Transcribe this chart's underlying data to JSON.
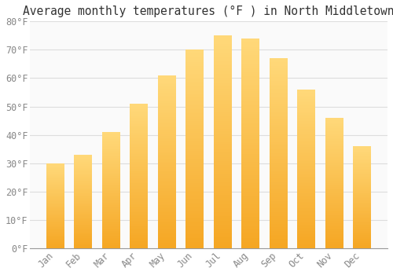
{
  "title": "Average monthly temperatures (°F ) in North Middletown",
  "months": [
    "Jan",
    "Feb",
    "Mar",
    "Apr",
    "May",
    "Jun",
    "Jul",
    "Aug",
    "Sep",
    "Oct",
    "Nov",
    "Dec"
  ],
  "values": [
    30,
    33,
    41,
    51,
    61,
    70,
    75,
    74,
    67,
    56,
    46,
    36
  ],
  "bar_color_bottom": "#F5A623",
  "bar_color_top": "#FFD97A",
  "background_color": "#FFFFFF",
  "plot_bg_color": "#FAFAFA",
  "grid_color": "#DDDDDD",
  "tick_color": "#888888",
  "title_color": "#333333",
  "ylim": [
    0,
    80
  ],
  "yticks": [
    0,
    10,
    20,
    30,
    40,
    50,
    60,
    70,
    80
  ],
  "ytick_labels": [
    "0°F",
    "10°F",
    "20°F",
    "30°F",
    "40°F",
    "50°F",
    "60°F",
    "70°F",
    "80°F"
  ],
  "title_fontsize": 10.5,
  "tick_fontsize": 8.5,
  "font_family": "monospace",
  "bar_width": 0.65,
  "gradient_steps": 100
}
